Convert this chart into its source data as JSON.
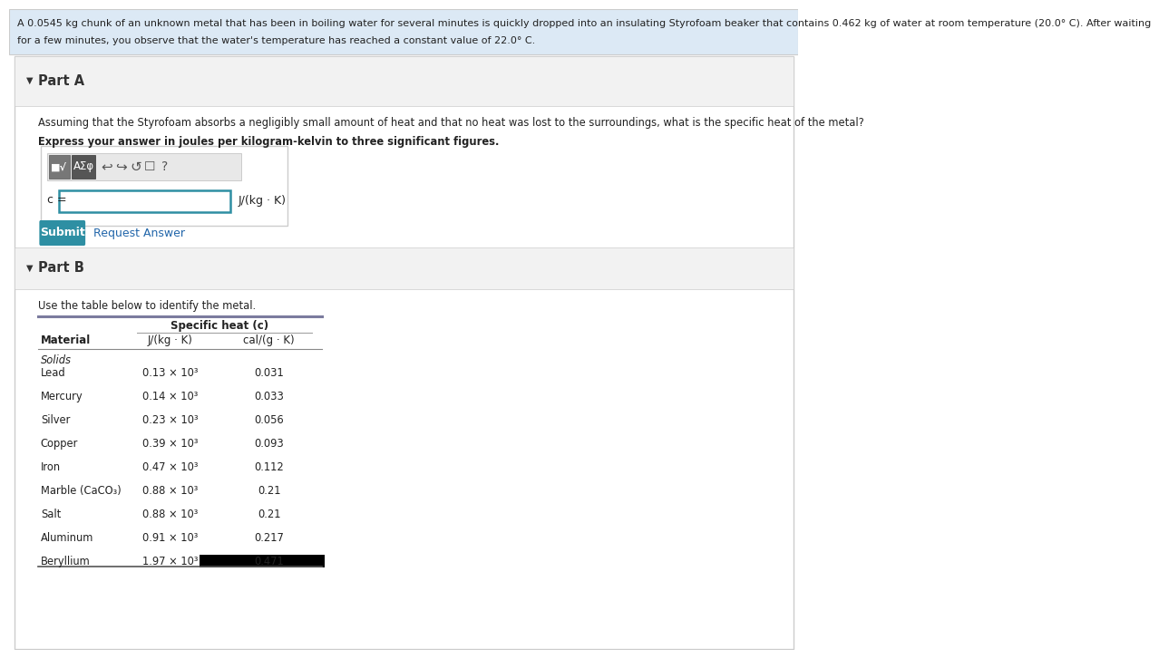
{
  "problem_text_line1": "A 0.0545 kg chunk of an unknown metal that has been in boiling water for several minutes is quickly dropped into an insulating Styrofoam beaker that contains 0.462 kg of water at room temperature (20.0° C). After waiting",
  "problem_text_line2": "for a few minutes, you observe that the water's temperature has reached a constant value of 22.0° C.",
  "part_a_label": "Part A",
  "part_a_question": "Assuming that the Styrofoam absorbs a negligibly small amount of heat and that no heat was lost to the surroundings, what is the specific heat of the metal?",
  "part_a_bold": "Express your answer in joules per kilogram-kelvin to three significant figures.",
  "c_label": "c =",
  "unit_label": "J/(kg · K)",
  "submit_label": "Submit",
  "request_answer_label": "Request Answer",
  "part_b_label": "Part B",
  "part_b_text": "Use the table below to identify the metal.",
  "table_header_main": "Specific heat (c)",
  "table_col1": "Material",
  "table_col2": "J/(kg · K)",
  "table_col3": "cal/(g · K)",
  "table_section": "Solids",
  "table_data": [
    [
      "Lead",
      "0.13 × 10³",
      "0.031"
    ],
    [
      "Mercury",
      "0.14 × 10³",
      "0.033"
    ],
    [
      "Silver",
      "0.23 × 10³",
      "0.056"
    ],
    [
      "Copper",
      "0.39 × 10³",
      "0.093"
    ],
    [
      "Iron",
      "0.47 × 10³",
      "0.112"
    ],
    [
      "Marble (CaCO₃)",
      "0.88 × 10³",
      "0.21"
    ],
    [
      "Salt",
      "0.88 × 10³",
      "0.21"
    ],
    [
      "Aluminum",
      "0.91 × 10³",
      "0.217"
    ],
    [
      "Beryllium",
      "1.97 × 10³",
      "0.471"
    ]
  ],
  "bg_color_header": "#dce9f5",
  "bg_color_white": "#ffffff",
  "bg_color_section": "#f2f2f2",
  "border_color": "#cccccc",
  "text_color_dark": "#222222",
  "submit_bg": "#2e8fa3",
  "submit_fg": "#ffffff",
  "input_border": "#2e8fa3",
  "table_line_color": "#7b7b9e",
  "part_label_color": "#333333",
  "link_color": "#2266aa"
}
